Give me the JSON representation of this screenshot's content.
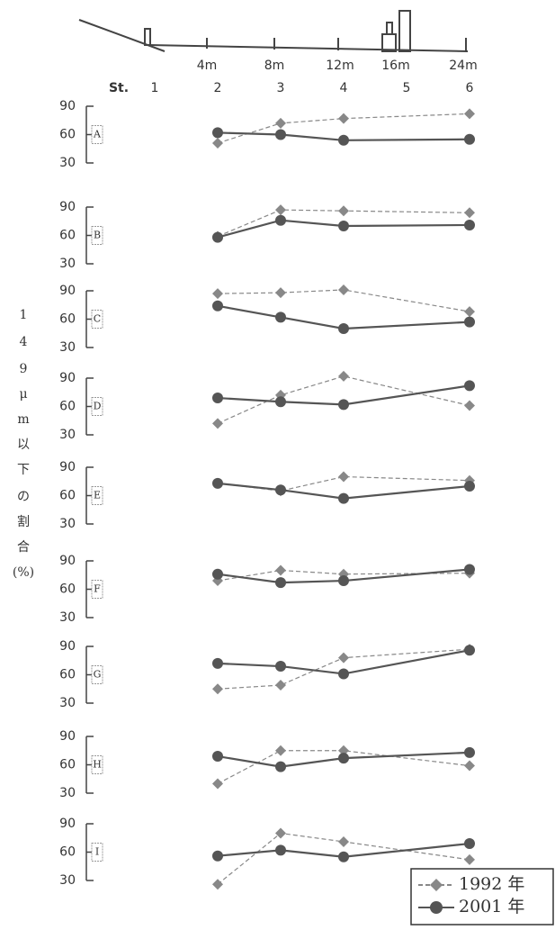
{
  "profile": {
    "depth_labels": [
      "4m",
      "8m",
      "12m",
      "16m",
      "24m"
    ],
    "station_label": "St.",
    "stations": [
      "1",
      "2",
      "3",
      "4",
      "5",
      "6"
    ]
  },
  "y_axis_label": [
    "1",
    "4",
    "9",
    "μ",
    "m",
    "以",
    "下",
    "の",
    "割",
    "合",
    "(%)"
  ],
  "chart_data": [
    {
      "type": "line",
      "label": "A",
      "x": [
        2,
        3,
        4,
        6
      ],
      "xlim": [
        1,
        6
      ],
      "ylim": [
        30,
        90
      ],
      "yticks": [
        30,
        60,
        90
      ],
      "series": [
        {
          "name": "1992 年",
          "color": "#888888",
          "dashed": true,
          "marker": "diamond",
          "values": [
            51,
            72,
            77,
            82
          ]
        },
        {
          "name": "2001 年",
          "color": "#555555",
          "dashed": false,
          "marker": "circle",
          "values": [
            62,
            60,
            54,
            55
          ]
        }
      ]
    },
    {
      "type": "line",
      "label": "B",
      "x": [
        2,
        3,
        4,
        6
      ],
      "xlim": [
        1,
        6
      ],
      "ylim": [
        30,
        90
      ],
      "yticks": [
        30,
        60,
        90
      ],
      "series": [
        {
          "name": "1992 年",
          "color": "#888888",
          "dashed": true,
          "marker": "diamond",
          "values": [
            59,
            87,
            86,
            84
          ]
        },
        {
          "name": "2001 年",
          "color": "#555555",
          "dashed": false,
          "marker": "circle",
          "values": [
            58,
            76,
            70,
            71
          ]
        }
      ]
    },
    {
      "type": "line",
      "label": "C",
      "x": [
        2,
        3,
        4,
        6
      ],
      "xlim": [
        1,
        6
      ],
      "ylim": [
        30,
        90
      ],
      "yticks": [
        30,
        60,
        90
      ],
      "series": [
        {
          "name": "1992 年",
          "color": "#888888",
          "dashed": true,
          "marker": "diamond",
          "values": [
            87,
            88,
            91,
            68
          ]
        },
        {
          "name": "2001 年",
          "color": "#555555",
          "dashed": false,
          "marker": "circle",
          "values": [
            74,
            62,
            50,
            57
          ]
        }
      ]
    },
    {
      "type": "line",
      "label": "D",
      "x": [
        2,
        3,
        4,
        6
      ],
      "xlim": [
        1,
        6
      ],
      "ylim": [
        30,
        90
      ],
      "yticks": [
        30,
        60,
        90
      ],
      "series": [
        {
          "name": "1992 年",
          "color": "#888888",
          "dashed": true,
          "marker": "diamond",
          "values": [
            42,
            72,
            92,
            61
          ]
        },
        {
          "name": "2001 年",
          "color": "#555555",
          "dashed": false,
          "marker": "circle",
          "values": [
            69,
            65,
            62,
            82
          ]
        }
      ]
    },
    {
      "type": "line",
      "label": "E",
      "x": [
        2,
        3,
        4,
        6
      ],
      "xlim": [
        1,
        6
      ],
      "ylim": [
        30,
        90
      ],
      "yticks": [
        30,
        60,
        90
      ],
      "series": [
        {
          "name": "1992 年",
          "color": "#888888",
          "dashed": true,
          "marker": "diamond",
          "values": [
            73,
            65,
            80,
            76
          ]
        },
        {
          "name": "2001 年",
          "color": "#555555",
          "dashed": false,
          "marker": "circle",
          "values": [
            73,
            66,
            57,
            70
          ]
        }
      ]
    },
    {
      "type": "line",
      "label": "F",
      "x": [
        2,
        3,
        4,
        6
      ],
      "xlim": [
        1,
        6
      ],
      "ylim": [
        30,
        90
      ],
      "yticks": [
        30,
        60,
        90
      ],
      "series": [
        {
          "name": "1992 年",
          "color": "#888888",
          "dashed": true,
          "marker": "diamond",
          "values": [
            69,
            80,
            76,
            77
          ]
        },
        {
          "name": "2001 年",
          "color": "#555555",
          "dashed": false,
          "marker": "circle",
          "values": [
            76,
            67,
            69,
            81
          ]
        }
      ]
    },
    {
      "type": "line",
      "label": "G",
      "x": [
        2,
        3,
        4,
        6
      ],
      "xlim": [
        1,
        6
      ],
      "ylim": [
        30,
        90
      ],
      "yticks": [
        30,
        60,
        90
      ],
      "series": [
        {
          "name": "1992 年",
          "color": "#888888",
          "dashed": true,
          "marker": "diamond",
          "values": [
            45,
            49,
            78,
            87
          ]
        },
        {
          "name": "2001 年",
          "color": "#555555",
          "dashed": false,
          "marker": "circle",
          "values": [
            72,
            69,
            61,
            86
          ]
        }
      ]
    },
    {
      "type": "line",
      "label": "H",
      "x": [
        2,
        3,
        4,
        6
      ],
      "xlim": [
        1,
        6
      ],
      "ylim": [
        30,
        90
      ],
      "yticks": [
        30,
        60,
        90
      ],
      "series": [
        {
          "name": "1992 年",
          "color": "#888888",
          "dashed": true,
          "marker": "diamond",
          "values": [
            40,
            75,
            75,
            59
          ]
        },
        {
          "name": "2001 年",
          "color": "#555555",
          "dashed": false,
          "marker": "circle",
          "values": [
            69,
            58,
            67,
            73
          ]
        }
      ]
    },
    {
      "type": "line",
      "label": "I",
      "x": [
        2,
        3,
        4,
        6
      ],
      "xlim": [
        1,
        6
      ],
      "ylim": [
        30,
        90
      ],
      "yticks": [
        30,
        60,
        90
      ],
      "series": [
        {
          "name": "1992 年",
          "color": "#888888",
          "dashed": true,
          "marker": "diamond",
          "values": [
            26,
            80,
            71,
            52
          ]
        },
        {
          "name": "2001 年",
          "color": "#555555",
          "dashed": false,
          "marker": "circle",
          "values": [
            56,
            62,
            55,
            69
          ]
        }
      ]
    }
  ]
}
